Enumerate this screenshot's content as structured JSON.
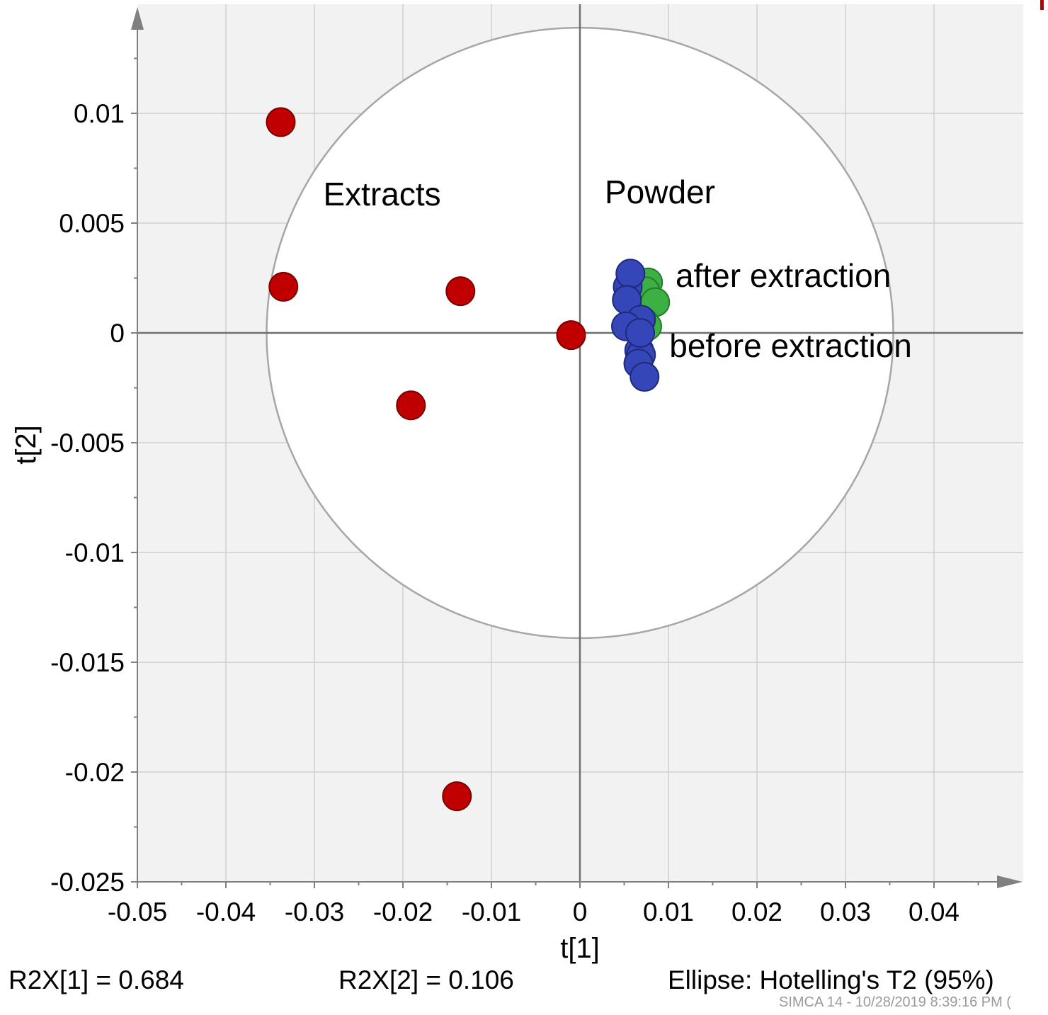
{
  "chart_data": {
    "type": "scatter",
    "xlabel": "t[1]",
    "ylabel": "t[2]",
    "xlim": [
      -0.05,
      0.05
    ],
    "ylim": [
      -0.025,
      0.015
    ],
    "x_ticks": [
      "-0.05",
      "-0.04",
      "-0.03",
      "-0.02",
      "-0.01",
      "0",
      "0.01",
      "0.02",
      "0.03",
      "0.04"
    ],
    "x_tick_values": [
      -0.05,
      -0.04,
      -0.03,
      -0.02,
      -0.01,
      0,
      0.01,
      0.02,
      0.03,
      0.04
    ],
    "y_ticks": [
      "0.01",
      "0.005",
      "0",
      "-0.005",
      "-0.01",
      "-0.015",
      "-0.02",
      "-0.025"
    ],
    "y_tick_values": [
      0.01,
      0.005,
      0,
      -0.005,
      -0.01,
      -0.015,
      -0.02,
      -0.025
    ],
    "grid": true,
    "ellipse": {
      "cx": 0,
      "cy": 0,
      "rx": 0.0354,
      "ry": 0.0139
    },
    "series": [
      {
        "color": "#c00000",
        "points": [
          {
            "x": -0.0338,
            "y": 0.0096
          },
          {
            "x": -0.0335,
            "y": 0.0021
          },
          {
            "x": -0.0135,
            "y": 0.0019
          },
          {
            "x": -0.001,
            "y": -0.0001
          },
          {
            "x": -0.0191,
            "y": -0.0033
          },
          {
            "x": -0.0139,
            "y": -0.0211
          }
        ]
      },
      {
        "color": "#3cb043",
        "points": [
          {
            "x": 0.0077,
            "y": 0.0023
          },
          {
            "x": 0.0074,
            "y": 0.0019
          },
          {
            "x": 0.0085,
            "y": 0.0014
          },
          {
            "x": 0.0072,
            "y": 0.0005
          },
          {
            "x": 0.0076,
            "y": 0.0003
          }
        ]
      },
      {
        "color": "#3446b8",
        "points": [
          {
            "x": 0.0054,
            "y": 0.0021
          },
          {
            "x": 0.0057,
            "y": 0.0027
          },
          {
            "x": 0.0053,
            "y": 0.0015
          },
          {
            "x": 0.0069,
            "y": 0.0006
          },
          {
            "x": 0.0052,
            "y": 0.0003
          },
          {
            "x": 0.0067,
            "y": -0.0008
          },
          {
            "x": 0.0069,
            "y": -0.001
          },
          {
            "x": 0.0066,
            "y": -0.0014
          },
          {
            "x": 0.0073,
            "y": -0.002
          },
          {
            "x": 0.0068,
            "y": 0.0
          }
        ]
      }
    ],
    "annotations": [
      {
        "text": "Extracts",
        "x": -0.029,
        "y": 0.0058
      },
      {
        "text": "Powder",
        "x": 0.0028,
        "y": 0.0059
      },
      {
        "text": "after extraction",
        "x": 0.0108,
        "y": 0.0021
      },
      {
        "text": "before extraction",
        "x": 0.0101,
        "y": -0.0011
      }
    ]
  },
  "footer": {
    "r2x1": "R2X[1] = 0.684",
    "r2x2": "R2X[2] = 0.106",
    "ellipse_note": "Ellipse: Hotelling's T2 (95%)",
    "stamp": "SIMCA 14 - 10/28/2019 8:39:16 PM ("
  }
}
